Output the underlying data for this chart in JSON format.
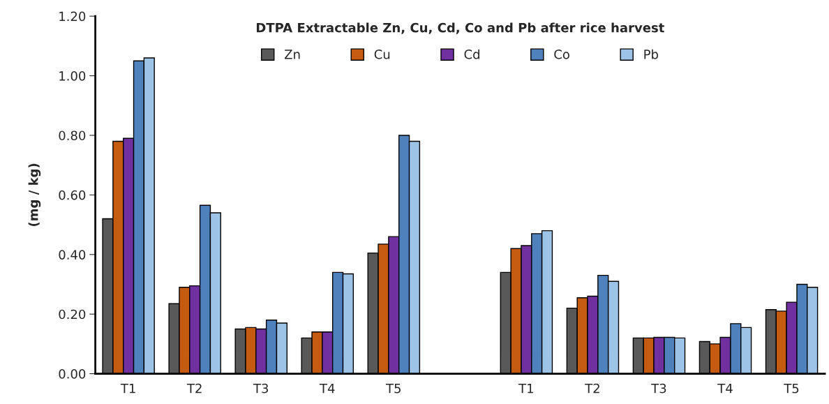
{
  "chart_data": {
    "type": "bar",
    "title": "DTPA Extractable Zn, Cu, Cd, Co and Pb after rice harvest",
    "ylabel": "(mg / kg)",
    "categories": [
      "T1",
      "T2",
      "T3",
      "T4",
      "T5",
      null,
      "T1",
      "T2",
      "T3",
      "T4",
      "T5"
    ],
    "series": [
      {
        "name": "Zn",
        "color": "#595959",
        "values": [
          0.52,
          0.235,
          0.15,
          0.12,
          0.405,
          null,
          0.34,
          0.22,
          0.12,
          0.108,
          0.215
        ]
      },
      {
        "name": "Cu",
        "color": "#c55a11",
        "values": [
          0.78,
          0.29,
          0.155,
          0.14,
          0.435,
          null,
          0.42,
          0.255,
          0.12,
          0.1,
          0.21
        ]
      },
      {
        "name": "Cd",
        "color": "#7030a0",
        "values": [
          0.79,
          0.295,
          0.15,
          0.14,
          0.46,
          null,
          0.43,
          0.26,
          0.122,
          0.122,
          0.24
        ]
      },
      {
        "name": "Co",
        "color": "#4f81bd",
        "values": [
          1.05,
          0.565,
          0.18,
          0.34,
          0.8,
          null,
          0.47,
          0.33,
          0.122,
          0.168,
          0.3
        ]
      },
      {
        "name": "Pb",
        "color": "#9dc3e6",
        "values": [
          1.06,
          0.54,
          0.17,
          0.335,
          0.78,
          null,
          0.48,
          0.31,
          0.12,
          0.155,
          0.29
        ]
      }
    ],
    "ylim": [
      0,
      1.2
    ],
    "yticks": [
      {
        "value": 0,
        "label": "0.00"
      },
      {
        "value": 0.2,
        "label": "0.20"
      },
      {
        "value": 0.4,
        "label": "0.40"
      },
      {
        "value": 0.6,
        "label": "0.60"
      },
      {
        "value": 0.8,
        "label": "0.80"
      },
      {
        "value": 1.0,
        "label": "1.00"
      },
      {
        "value": 1.2,
        "label": "1.20"
      }
    ],
    "legend": "top",
    "grid": false
  }
}
